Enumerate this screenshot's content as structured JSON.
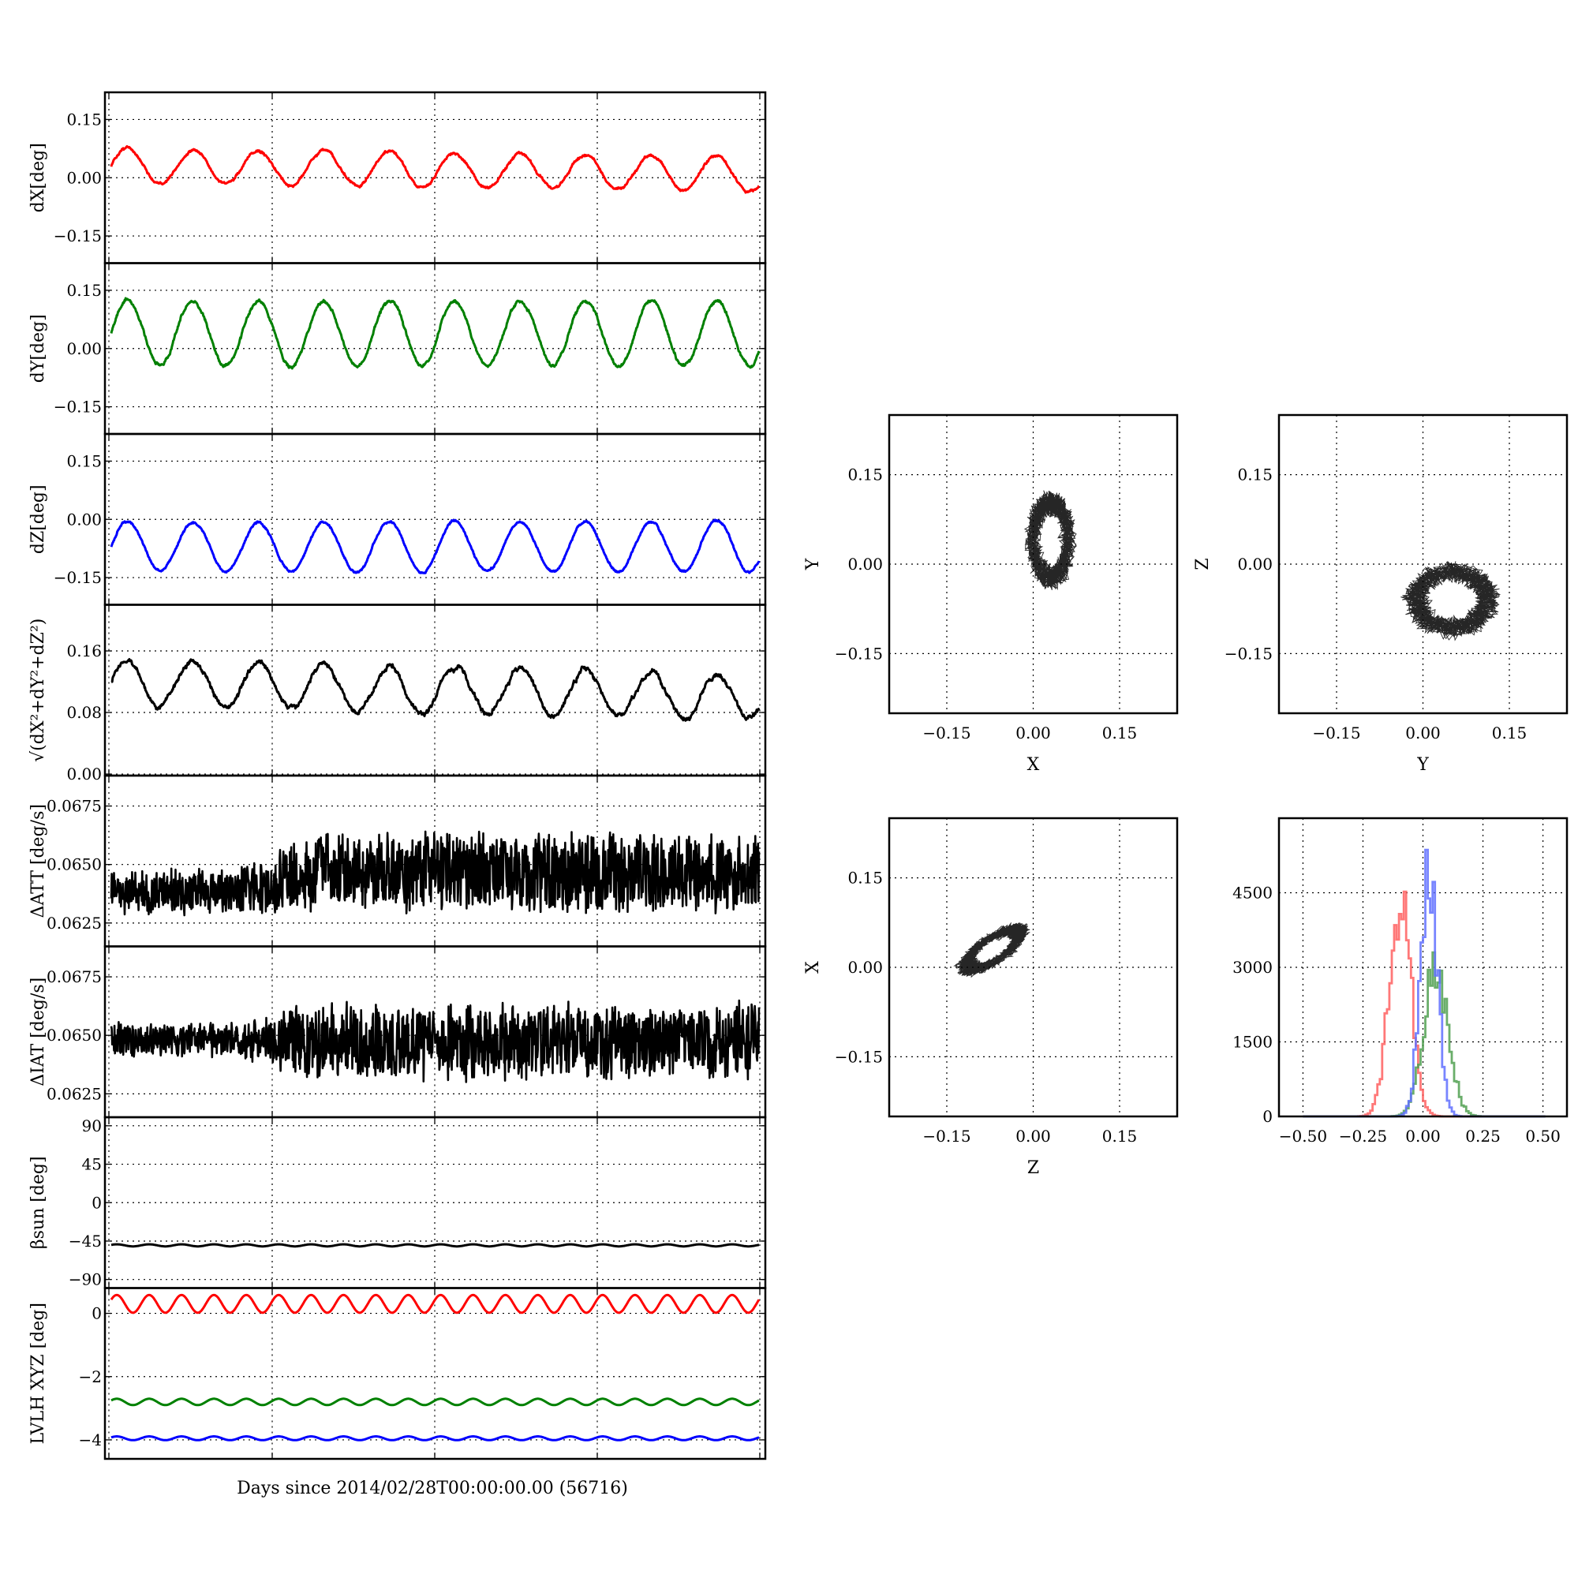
{
  "figure": {
    "xlabel_common": "Days since 2014/02/28T00:00:00.00 (56716)"
  },
  "chart_data": [
    {
      "id": "dx",
      "type": "line",
      "ylabel": "dX[deg]",
      "yticks": [
        -0.15,
        0.0,
        0.15
      ],
      "ytick_labels": [
        "−0.15",
        "0.00",
        "0.15"
      ],
      "ylim": [
        -0.22,
        0.22
      ],
      "series": [
        {
          "color": "#ff0000",
          "period": 2.02,
          "baseline": 0.03,
          "amplitude": 0.045,
          "trend": -0.02,
          "noise": 0.008
        }
      ]
    },
    {
      "id": "dy",
      "type": "line",
      "ylabel": "dY[deg]",
      "yticks": [
        -0.15,
        0.0,
        0.15
      ],
      "ytick_labels": [
        "−0.15",
        "0.00",
        "0.15"
      ],
      "ylim": [
        -0.22,
        0.22
      ],
      "series": [
        {
          "color": "#008000",
          "period": 2.02,
          "baseline": 0.04,
          "amplitude": 0.085,
          "trend": 0.0,
          "noise": 0.01
        }
      ]
    },
    {
      "id": "dz",
      "type": "line",
      "ylabel": "dZ[deg]",
      "yticks": [
        -0.15,
        0.0,
        0.15
      ],
      "ytick_labels": [
        "−0.15",
        "0.00",
        "0.15"
      ],
      "ylim": [
        -0.22,
        0.22
      ],
      "series": [
        {
          "color": "#0000ff",
          "period": 2.02,
          "baseline": -0.07,
          "amplitude": 0.065,
          "trend": 0.0,
          "noise": 0.007
        }
      ]
    },
    {
      "id": "dr",
      "type": "line",
      "ylabel": "√(dX²+dY²+dZ²)",
      "yticks": [
        0.0,
        0.08,
        0.16
      ],
      "ytick_labels": [
        "0.00",
        "0.08",
        "0.16"
      ],
      "ylim": [
        -0.002,
        0.22
      ],
      "series": [
        {
          "color": "#000000",
          "period": 2.02,
          "baseline": 0.12,
          "amplitude": 0.03,
          "trend": -0.02,
          "noise": 0.008
        }
      ]
    },
    {
      "id": "datt",
      "type": "line",
      "ylabel": "ΔATT [deg/s]",
      "yticks": [
        0.0625,
        0.065,
        0.0675
      ],
      "ytick_labels": [
        "0.0625",
        "0.0650",
        "0.0675"
      ],
      "ylim": [
        0.0615,
        0.0688
      ],
      "series": [
        {
          "color": "#000000",
          "baseline": 0.0643,
          "early_range": [
            0.0628,
            0.0649
          ],
          "late_range": [
            0.0628,
            0.0665
          ],
          "noise": 0.0012
        }
      ]
    },
    {
      "id": "diat",
      "type": "line",
      "ylabel": "ΔIAT [deg/s]",
      "yticks": [
        0.0625,
        0.065,
        0.0675
      ],
      "ytick_labels": [
        "0.0625",
        "0.0650",
        "0.0675"
      ],
      "ylim": [
        0.0615,
        0.0688
      ],
      "series": [
        {
          "color": "#000000",
          "baseline": 0.0647,
          "early_range": [
            0.064,
            0.0656
          ],
          "late_range": [
            0.063,
            0.0665
          ],
          "noise": 0.001
        }
      ]
    },
    {
      "id": "beta",
      "type": "line",
      "ylabel": "βsun [deg]",
      "yticks": [
        -90,
        -45,
        0,
        45,
        90
      ],
      "ytick_labels": [
        "−90",
        "−45",
        "0",
        "45",
        "90"
      ],
      "ylim": [
        -100,
        100
      ],
      "series": [
        {
          "color": "#000000",
          "baseline": -50,
          "amplitude": 1.2,
          "period": 1.0
        }
      ]
    },
    {
      "id": "lvlh",
      "type": "line",
      "ylabel": "LVLH XYZ [deg]",
      "yticks": [
        -4,
        -2,
        0
      ],
      "ytick_labels": [
        "−4",
        "−2",
        "0"
      ],
      "ylim": [
        -4.6,
        0.8
      ],
      "series": [
        {
          "color": "#ff0000",
          "baseline": 0.3,
          "amplitude": 0.28,
          "period": 1.0
        },
        {
          "color": "#008000",
          "baseline": -2.8,
          "amplitude": 0.1,
          "period": 1.0
        },
        {
          "color": "#0000ff",
          "baseline": -3.95,
          "amplitude": 0.06,
          "period": 1.0
        }
      ]
    }
  ],
  "x_range_days": [
    0,
    20
  ],
  "scatter_panels": [
    {
      "id": "xy",
      "type": "scatter",
      "xlabel": "X",
      "ylabel": "Y",
      "xticks": [
        -0.15,
        0.0,
        0.15
      ],
      "yticks": [
        -0.15,
        0.0,
        0.15
      ],
      "xtick_labels": [
        "−0.15",
        "0.00",
        "0.15"
      ],
      "ytick_labels": [
        "−0.15",
        "0.00",
        "0.15"
      ],
      "lim": [
        -0.25,
        0.25
      ],
      "center": [
        0.03,
        0.04
      ],
      "radius": [
        0.04,
        0.08
      ]
    },
    {
      "id": "yz",
      "type": "scatter",
      "xlabel": "Y",
      "ylabel": "Z",
      "xticks": [
        -0.15,
        0.0,
        0.15
      ],
      "yticks": [
        -0.15,
        0.0,
        0.15
      ],
      "xtick_labels": [
        "−0.15",
        "0.00",
        "0.15"
      ],
      "ytick_labels": [
        "−0.15",
        "0.00",
        "0.15"
      ],
      "lim": [
        -0.25,
        0.25
      ],
      "center": [
        0.05,
        -0.06
      ],
      "radius": [
        0.08,
        0.06
      ]
    },
    {
      "id": "zx",
      "type": "scatter",
      "xlabel": "Z",
      "ylabel": "X",
      "xticks": [
        -0.15,
        0.0,
        0.15
      ],
      "yticks": [
        -0.15,
        0.0,
        0.15
      ],
      "xtick_labels": [
        "−0.15",
        "0.00",
        "0.15"
      ],
      "ytick_labels": [
        "−0.15",
        "0.00",
        "0.15"
      ],
      "lim": [
        -0.25,
        0.25
      ],
      "center": [
        -0.07,
        0.03
      ],
      "radius": [
        0.07,
        0.05
      ],
      "tilt": 0.55
    }
  ],
  "histogram": {
    "type": "histogram",
    "xticks": [
      -0.5,
      -0.25,
      0.0,
      0.25,
      0.5
    ],
    "xtick_labels": [
      "−0.50",
      "−0.25",
      "0.00",
      "0.25",
      "0.50"
    ],
    "yticks": [
      0,
      1500,
      3000,
      4500
    ],
    "ytick_labels": [
      "0",
      "1500",
      "3000",
      "4500"
    ],
    "xlim": [
      -0.6,
      0.6
    ],
    "ylim": [
      0,
      6000
    ],
    "series": [
      {
        "color": "#ff6060",
        "center": -0.1,
        "sigma": 0.045,
        "peak": 4500
      },
      {
        "color": "#50a050",
        "center": 0.05,
        "sigma": 0.05,
        "peak": 3100
      },
      {
        "color": "#6070ff",
        "center": 0.02,
        "sigma": 0.035,
        "peak": 5100
      }
    ]
  }
}
